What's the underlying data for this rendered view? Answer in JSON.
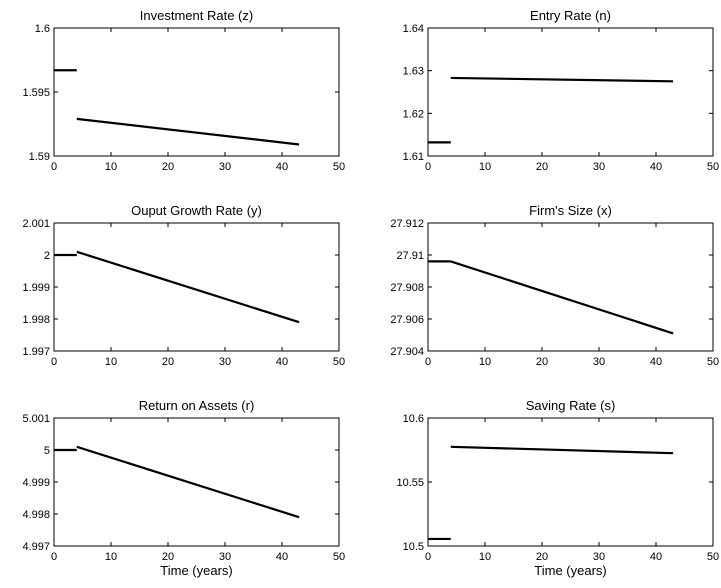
{
  "chart_data": [
    {
      "type": "line",
      "title": "Investment Rate (z)",
      "xlabel": "",
      "ylabel": "",
      "xlim": [
        0,
        50
      ],
      "ylim": [
        1.59,
        1.6
      ],
      "xticks": [
        0,
        10,
        20,
        30,
        40,
        50
      ],
      "xtick_labels": [
        "0",
        "10",
        "20",
        "30",
        "40",
        "50"
      ],
      "yticks": [
        1.59,
        1.595,
        1.6
      ],
      "ytick_labels": [
        "1.59",
        "1.595",
        "1.6"
      ],
      "grid": false,
      "series": [
        {
          "x": [
            0,
            4
          ],
          "y": [
            1.5967,
            1.5967
          ]
        },
        {
          "x": [
            4,
            43
          ],
          "y": [
            1.5929,
            1.5909
          ]
        }
      ]
    },
    {
      "type": "line",
      "title": "Entry Rate (n)",
      "xlabel": "",
      "ylabel": "",
      "xlim": [
        0,
        50
      ],
      "ylim": [
        1.61,
        1.64
      ],
      "xticks": [
        0,
        10,
        20,
        30,
        40,
        50
      ],
      "xtick_labels": [
        "0",
        "10",
        "20",
        "30",
        "40",
        "50"
      ],
      "yticks": [
        1.61,
        1.62,
        1.63,
        1.64
      ],
      "ytick_labels": [
        "1.61",
        "1.62",
        "1.63",
        "1.64"
      ],
      "grid": false,
      "series": [
        {
          "x": [
            0,
            4
          ],
          "y": [
            1.6132,
            1.6132
          ]
        },
        {
          "x": [
            4,
            43
          ],
          "y": [
            1.6283,
            1.6275
          ]
        }
      ]
    },
    {
      "type": "line",
      "title": "Ouput Growth Rate (y)",
      "xlabel": "",
      "ylabel": "",
      "xlim": [
        0,
        50
      ],
      "ylim": [
        1.997,
        2.001
      ],
      "xticks": [
        0,
        10,
        20,
        30,
        40,
        50
      ],
      "xtick_labels": [
        "0",
        "10",
        "20",
        "30",
        "40",
        "50"
      ],
      "yticks": [
        1.997,
        1.998,
        1.999,
        2.0,
        2.001
      ],
      "ytick_labels": [
        "1.997",
        "1.998",
        "1.999",
        "2",
        "2.001"
      ],
      "grid": false,
      "series": [
        {
          "x": [
            0,
            4
          ],
          "y": [
            2.0,
            2.0
          ]
        },
        {
          "x": [
            4,
            43
          ],
          "y": [
            2.0001,
            1.9979
          ]
        }
      ]
    },
    {
      "type": "line",
      "title": "Firm's Size (x)",
      "xlabel": "",
      "ylabel": "",
      "xlim": [
        0,
        50
      ],
      "ylim": [
        27.904,
        27.912
      ],
      "xticks": [
        0,
        10,
        20,
        30,
        40,
        50
      ],
      "xtick_labels": [
        "0",
        "10",
        "20",
        "30",
        "40",
        "50"
      ],
      "yticks": [
        27.904,
        27.906,
        27.908,
        27.91,
        27.912
      ],
      "ytick_labels": [
        "27.904",
        "27.906",
        "27.908",
        "27.91",
        "27.912"
      ],
      "grid": false,
      "series": [
        {
          "x": [
            0,
            4
          ],
          "y": [
            27.9096,
            27.9096
          ]
        },
        {
          "x": [
            4,
            43
          ],
          "y": [
            27.9096,
            27.9051
          ]
        }
      ]
    },
    {
      "type": "line",
      "title": "Return on Assets (r)",
      "xlabel": "Time (years)",
      "ylabel": "",
      "xlim": [
        0,
        50
      ],
      "ylim": [
        4.997,
        5.001
      ],
      "xticks": [
        0,
        10,
        20,
        30,
        40,
        50
      ],
      "xtick_labels": [
        "0",
        "10",
        "20",
        "30",
        "40",
        "50"
      ],
      "yticks": [
        4.997,
        4.998,
        4.999,
        5.0,
        5.001
      ],
      "ytick_labels": [
        "4.997",
        "4.998",
        "4.999",
        "5",
        "5.001"
      ],
      "grid": false,
      "series": [
        {
          "x": [
            0,
            4
          ],
          "y": [
            5.0,
            5.0
          ]
        },
        {
          "x": [
            4,
            43
          ],
          "y": [
            5.0001,
            4.9979
          ]
        }
      ]
    },
    {
      "type": "line",
      "title": "Saving Rate (s)",
      "xlabel": "Time (years)",
      "ylabel": "",
      "xlim": [
        0,
        50
      ],
      "ylim": [
        10.5,
        10.6
      ],
      "xticks": [
        0,
        10,
        20,
        30,
        40,
        50
      ],
      "xtick_labels": [
        "0",
        "10",
        "20",
        "30",
        "40",
        "50"
      ],
      "yticks": [
        10.5,
        10.55,
        10.6
      ],
      "ytick_labels": [
        "10.5",
        "10.55",
        "10.6"
      ],
      "grid": false,
      "series": [
        {
          "x": [
            0,
            4
          ],
          "y": [
            10.5055,
            10.5055
          ]
        },
        {
          "x": [
            4,
            43
          ],
          "y": [
            10.5775,
            10.5725
          ]
        }
      ]
    }
  ]
}
